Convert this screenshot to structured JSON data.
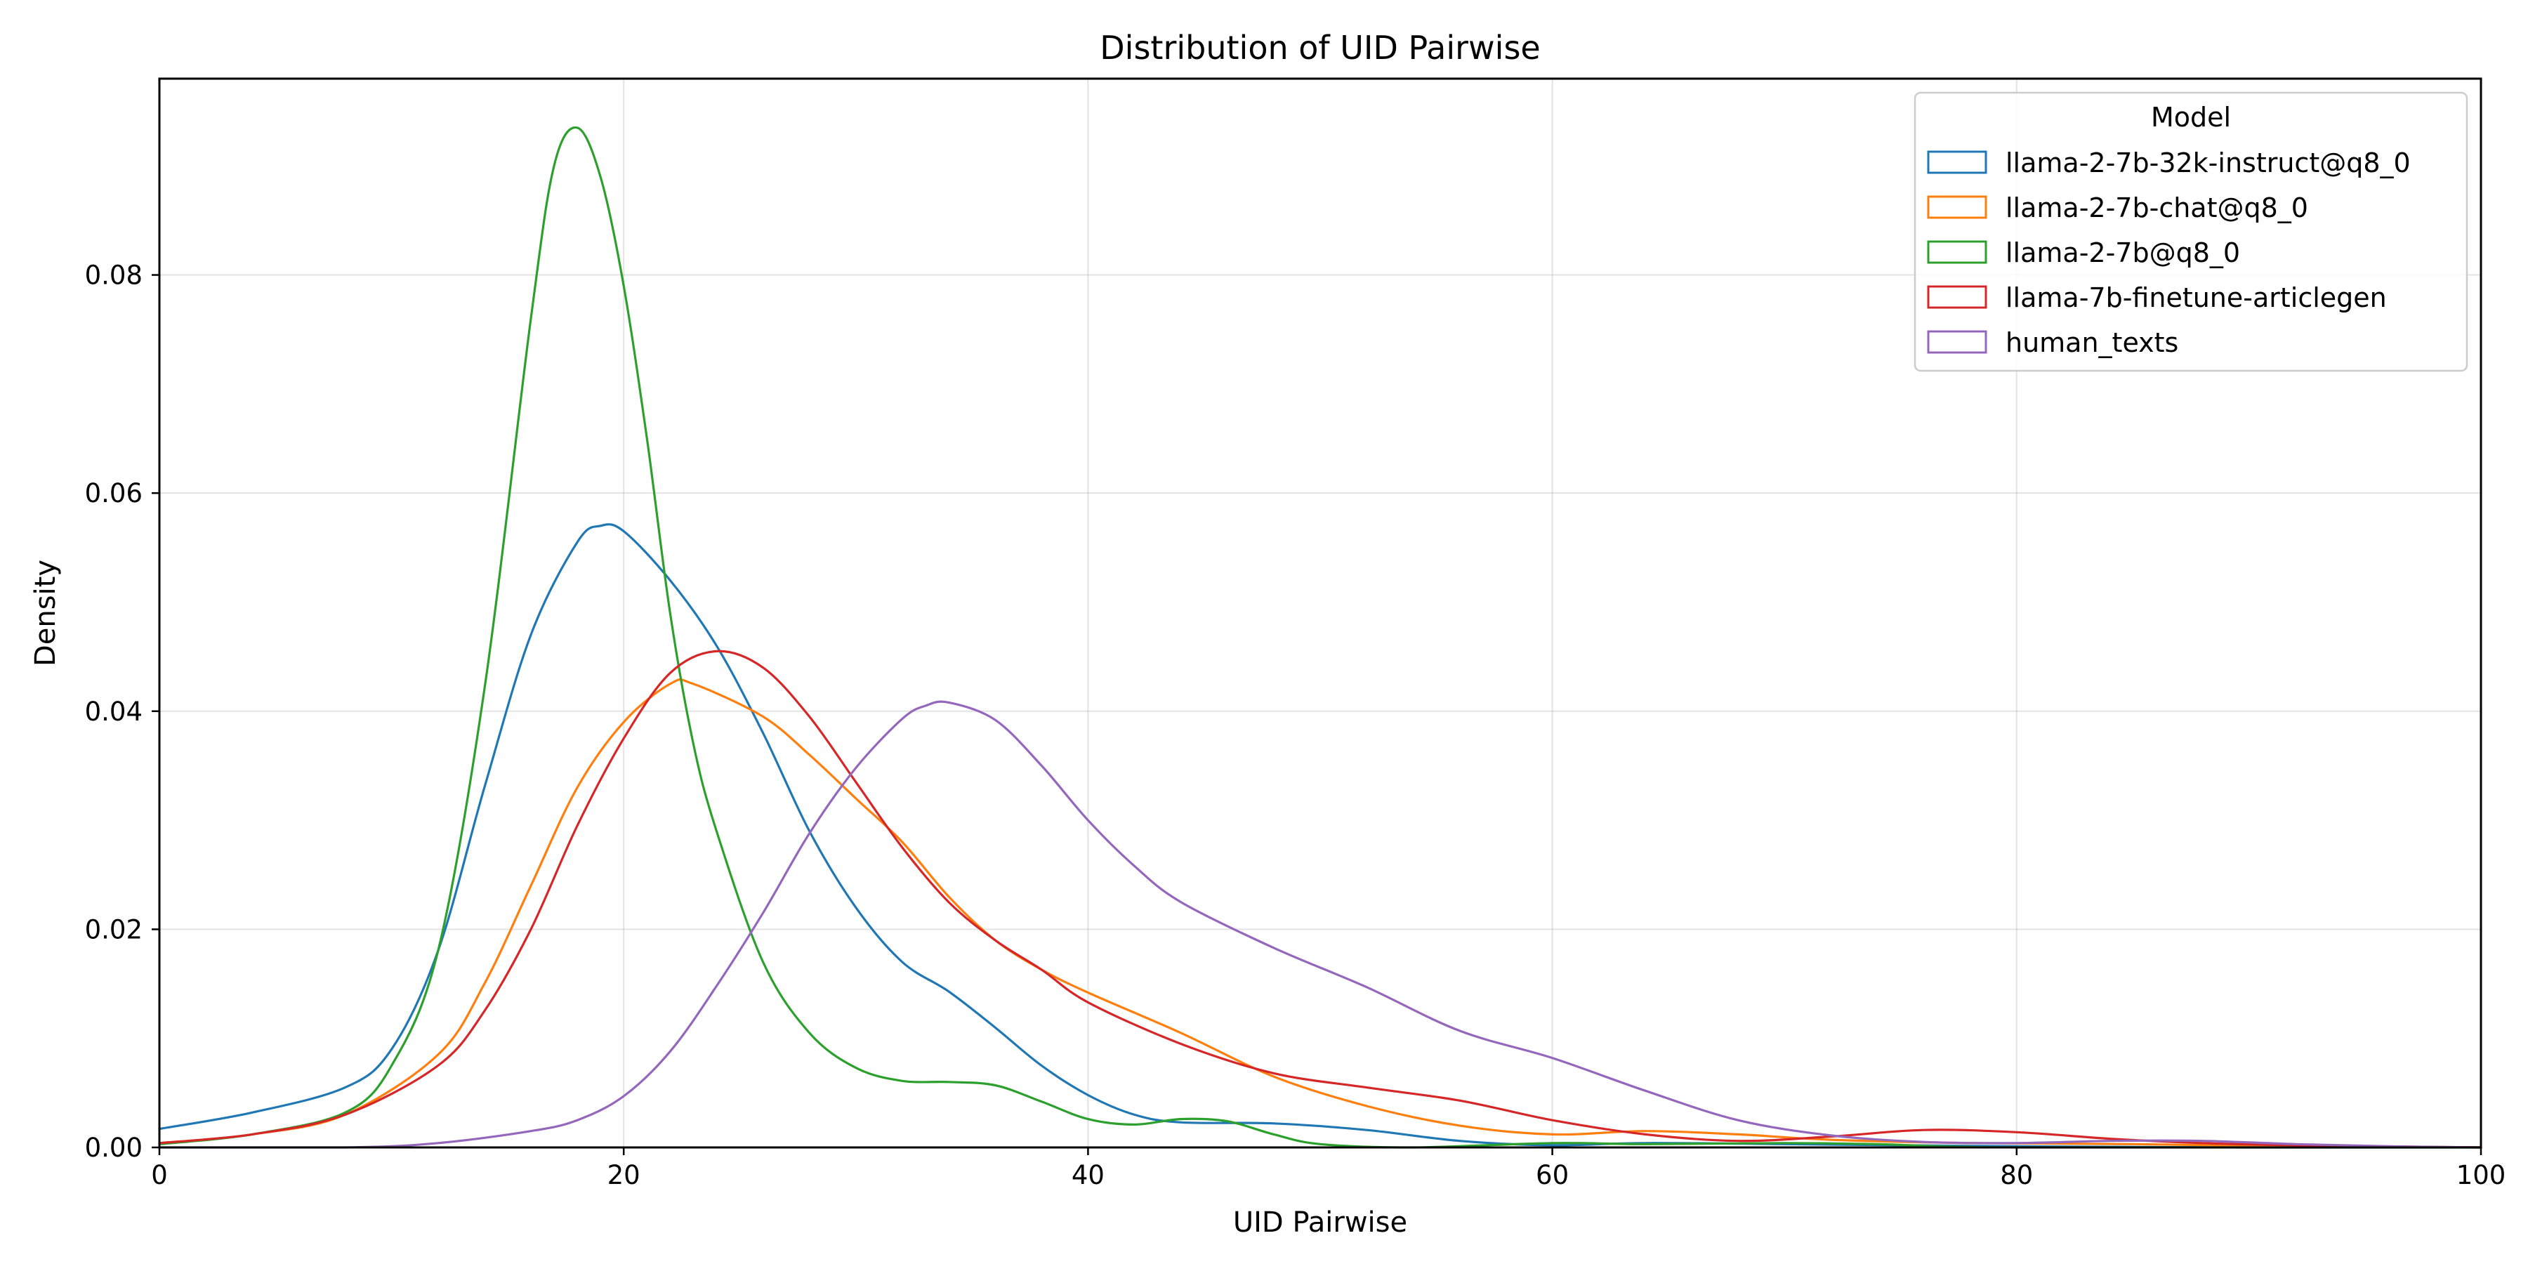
{
  "chart_data": {
    "type": "line",
    "title": "Distribution of UID Pairwise",
    "xlabel": "UID Pairwise",
    "ylabel": "Density",
    "xlim": [
      0,
      100
    ],
    "ylim": [
      0,
      0.098
    ],
    "xticks": [
      0,
      20,
      40,
      60,
      80,
      100
    ],
    "xtick_labels": [
      "0",
      "20",
      "40",
      "60",
      "80",
      "100"
    ],
    "yticks": [
      0,
      0.02,
      0.04,
      0.06,
      0.08
    ],
    "ytick_labels": [
      "0.00",
      "0.02",
      "0.04",
      "0.06",
      "0.08"
    ],
    "grid": true,
    "legend": {
      "title": "Model",
      "placement": "top-right"
    },
    "series": [
      {
        "name": "llama-2-7b-32k-instruct@q8_0",
        "color": "#1f77b4",
        "points": [
          [
            0,
            0.0017
          ],
          [
            4,
            0.0032
          ],
          [
            8,
            0.0055
          ],
          [
            10,
            0.009
          ],
          [
            12,
            0.018
          ],
          [
            14,
            0.033
          ],
          [
            16,
            0.047
          ],
          [
            18,
            0.0555
          ],
          [
            19,
            0.057
          ],
          [
            20,
            0.0565
          ],
          [
            22,
            0.052
          ],
          [
            24,
            0.046
          ],
          [
            26,
            0.038
          ],
          [
            28,
            0.029
          ],
          [
            30,
            0.022
          ],
          [
            32,
            0.017
          ],
          [
            34,
            0.0143
          ],
          [
            36,
            0.011
          ],
          [
            38,
            0.0075
          ],
          [
            40,
            0.0048
          ],
          [
            42,
            0.003
          ],
          [
            44,
            0.0023
          ],
          [
            48,
            0.0022
          ],
          [
            52,
            0.0016
          ],
          [
            56,
            0.0006
          ],
          [
            60,
            0.0002
          ],
          [
            64,
            0.0004
          ],
          [
            70,
            0.0003
          ],
          [
            75,
            0.0002
          ],
          [
            80,
            0.0001
          ],
          [
            90,
            0.0
          ],
          [
            100,
            0.0
          ]
        ]
      },
      {
        "name": "llama-2-7b-chat@q8_0",
        "color": "#ff7f0e",
        "points": [
          [
            0,
            0.0004
          ],
          [
            4,
            0.0012
          ],
          [
            8,
            0.003
          ],
          [
            12,
            0.0085
          ],
          [
            14,
            0.015
          ],
          [
            16,
            0.024
          ],
          [
            18,
            0.033
          ],
          [
            20,
            0.039
          ],
          [
            22,
            0.0425
          ],
          [
            23,
            0.0425
          ],
          [
            26,
            0.0395
          ],
          [
            28,
            0.036
          ],
          [
            30,
            0.032
          ],
          [
            32,
            0.028
          ],
          [
            34,
            0.023
          ],
          [
            36,
            0.019
          ],
          [
            38,
            0.0163
          ],
          [
            40,
            0.0142
          ],
          [
            44,
            0.0105
          ],
          [
            48,
            0.0065
          ],
          [
            52,
            0.0038
          ],
          [
            56,
            0.002
          ],
          [
            60,
            0.0012
          ],
          [
            64,
            0.0015
          ],
          [
            68,
            0.0012
          ],
          [
            72,
            0.0007
          ],
          [
            78,
            0.0004
          ],
          [
            85,
            0.0003
          ],
          [
            92,
            0.0001
          ],
          [
            100,
            0.0
          ]
        ]
      },
      {
        "name": "llama-2-7b@q8_0",
        "color": "#2ca02c",
        "points": [
          [
            0,
            0.0003
          ],
          [
            4,
            0.0012
          ],
          [
            8,
            0.0032
          ],
          [
            10,
            0.0075
          ],
          [
            12,
            0.018
          ],
          [
            14,
            0.042
          ],
          [
            16,
            0.076
          ],
          [
            17,
            0.09
          ],
          [
            18,
            0.0935
          ],
          [
            19,
            0.089
          ],
          [
            20,
            0.079
          ],
          [
            21,
            0.065
          ],
          [
            22,
            0.049
          ],
          [
            23,
            0.037
          ],
          [
            24,
            0.029
          ],
          [
            26,
            0.017
          ],
          [
            28,
            0.0105
          ],
          [
            30,
            0.0073
          ],
          [
            32,
            0.0061
          ],
          [
            34,
            0.006
          ],
          [
            36,
            0.0057
          ],
          [
            38,
            0.0042
          ],
          [
            40,
            0.0026
          ],
          [
            42,
            0.0021
          ],
          [
            44,
            0.0026
          ],
          [
            46,
            0.0024
          ],
          [
            48,
            0.0012
          ],
          [
            50,
            0.0003
          ],
          [
            54,
            0.0
          ],
          [
            60,
            0.0004
          ],
          [
            64,
            0.0003
          ],
          [
            70,
            0.0004
          ],
          [
            74,
            0.0003
          ],
          [
            80,
            0.0
          ],
          [
            100,
            0.0
          ]
        ]
      },
      {
        "name": "llama-7b-finetune-articlegen",
        "color": "#d62728",
        "points": [
          [
            0,
            0.0004
          ],
          [
            4,
            0.0012
          ],
          [
            8,
            0.003
          ],
          [
            12,
            0.0075
          ],
          [
            14,
            0.0125
          ],
          [
            16,
            0.02
          ],
          [
            18,
            0.0295
          ],
          [
            20,
            0.0375
          ],
          [
            22,
            0.0435
          ],
          [
            24,
            0.0455
          ],
          [
            26,
            0.044
          ],
          [
            28,
            0.0395
          ],
          [
            30,
            0.0335
          ],
          [
            32,
            0.0275
          ],
          [
            34,
            0.0225
          ],
          [
            36,
            0.019
          ],
          [
            38,
            0.0163
          ],
          [
            40,
            0.0133
          ],
          [
            44,
            0.0095
          ],
          [
            48,
            0.0068
          ],
          [
            52,
            0.0055
          ],
          [
            56,
            0.0043
          ],
          [
            60,
            0.0025
          ],
          [
            64,
            0.0012
          ],
          [
            68,
            0.0006
          ],
          [
            72,
            0.001
          ],
          [
            76,
            0.0016
          ],
          [
            80,
            0.0014
          ],
          [
            84,
            0.0008
          ],
          [
            88,
            0.0004
          ],
          [
            92,
            0.0002
          ],
          [
            100,
            0.0
          ]
        ]
      },
      {
        "name": "human_texts",
        "color": "#9467bd",
        "points": [
          [
            0,
            0.0
          ],
          [
            8,
            0.0
          ],
          [
            12,
            0.0004
          ],
          [
            16,
            0.0015
          ],
          [
            18,
            0.0025
          ],
          [
            20,
            0.0047
          ],
          [
            22,
            0.0088
          ],
          [
            24,
            0.0148
          ],
          [
            26,
            0.0215
          ],
          [
            28,
            0.0288
          ],
          [
            30,
            0.0348
          ],
          [
            32,
            0.0393
          ],
          [
            33,
            0.0405
          ],
          [
            34,
            0.0408
          ],
          [
            36,
            0.0392
          ],
          [
            38,
            0.035
          ],
          [
            40,
            0.03
          ],
          [
            42,
            0.0258
          ],
          [
            44,
            0.0225
          ],
          [
            48,
            0.0183
          ],
          [
            52,
            0.0147
          ],
          [
            56,
            0.0107
          ],
          [
            60,
            0.0082
          ],
          [
            64,
            0.0052
          ],
          [
            68,
            0.0025
          ],
          [
            72,
            0.0011
          ],
          [
            76,
            0.0005
          ],
          [
            80,
            0.0004
          ],
          [
            84,
            0.0006
          ],
          [
            88,
            0.0006
          ],
          [
            92,
            0.0003
          ],
          [
            96,
            0.0001
          ],
          [
            100,
            0.0
          ]
        ]
      }
    ]
  }
}
